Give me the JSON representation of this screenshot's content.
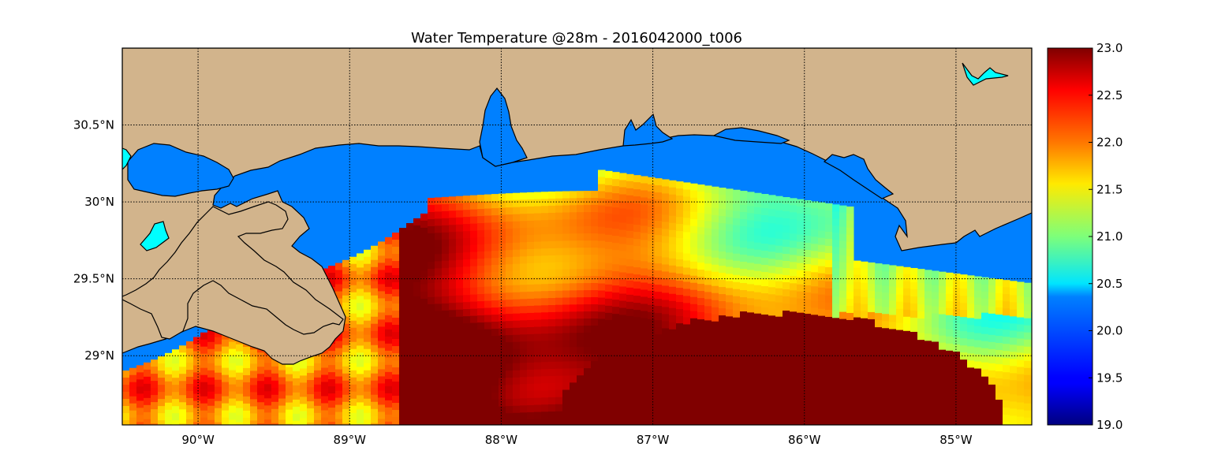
{
  "figure": {
    "title": "Water Temperature @28m - 2016042000_t006"
  },
  "map": {
    "lon_range": [
      -90.5,
      -84.5
    ],
    "lat_range": [
      28.55,
      31.0
    ],
    "lon_ticks": [
      {
        "value": -90,
        "label": "90°W"
      },
      {
        "value": -89,
        "label": "89°W"
      },
      {
        "value": -88,
        "label": "88°W"
      },
      {
        "value": -87,
        "label": "87°W"
      },
      {
        "value": -86,
        "label": "86°W"
      },
      {
        "value": -85,
        "label": "85°W"
      }
    ],
    "lat_ticks": [
      {
        "value": 30.5,
        "label": "30.5°N"
      },
      {
        "value": 30.0,
        "label": "30°N"
      },
      {
        "value": 29.5,
        "label": "29.5°N"
      },
      {
        "value": 29.0,
        "label": "29°N"
      }
    ],
    "grid": true,
    "colors": {
      "land": "#d2b48c",
      "masked_water": "#0080ff",
      "lakes": "#00ffff",
      "coastline": "#000000"
    }
  },
  "colorbar": {
    "min": 19.0,
    "max": 23.0,
    "ticks": [
      "23.0",
      "22.5",
      "22.0",
      "21.5",
      "21.0",
      "20.5",
      "20.0",
      "19.5",
      "19.0"
    ],
    "colormap": "jet"
  }
}
